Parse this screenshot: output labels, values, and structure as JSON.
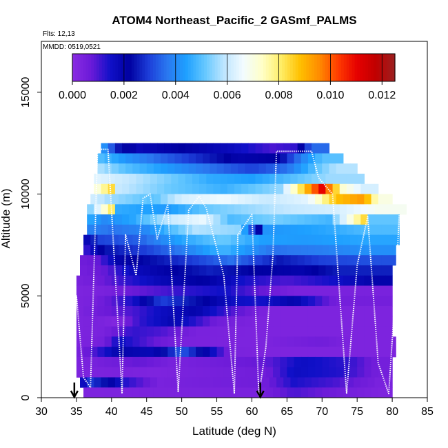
{
  "chart_data": {
    "type": "heatmap",
    "title": "ATOM4 Northeast_Pacific_2 GASmf_PALMS",
    "flights_label": "Flts: 12,13",
    "date_label": "MMDD: 0519,0521",
    "xlabel": "Latitude (deg N)",
    "ylabel": "Altitude (m)",
    "xlim": [
      30,
      85
    ],
    "ylim": [
      0,
      17500
    ],
    "x_ticks": [
      30,
      35,
      40,
      45,
      50,
      55,
      60,
      65,
      70,
      75,
      80,
      85
    ],
    "y_ticks": [
      0,
      5000,
      10000,
      15000
    ],
    "grid": false,
    "colorbar": {
      "placement": "top-inside",
      "min": 0.0,
      "max": 0.0125,
      "tick_values": [
        0.0,
        0.002,
        0.004,
        0.006,
        0.008,
        0.01,
        0.012
      ],
      "tick_labels": [
        "0.000",
        "0.002",
        "0.004",
        "0.006",
        "0.008",
        "0.010",
        "0.012"
      ],
      "colors": [
        "#8a2be2",
        "#6a1ad8",
        "#1010c8",
        "#0000a0",
        "#1c3cd8",
        "#2a78f0",
        "#1ea0ff",
        "#66c8ff",
        "#bfe6ff",
        "#f2fbff",
        "#ffffc8",
        "#ffee66",
        "#ffc000",
        "#ff8c00",
        "#ff3c00",
        "#e60000",
        "#c00000",
        "#9b2020"
      ]
    },
    "heatmap_rows": [
      {
        "alt_bottom": 12000,
        "alt_top": 12500,
        "values": [
          [
            38.5,
            0.0045
          ],
          [
            41,
            0.0025
          ],
          [
            44,
            0.0018
          ],
          [
            50,
            0.0022
          ],
          [
            57,
            0.0017
          ],
          [
            63,
            0.001
          ],
          [
            66,
            0.0012
          ],
          [
            68.5,
            0.0035
          ],
          [
            71,
            null
          ]
        ]
      },
      {
        "alt_bottom": 11500,
        "alt_top": 12000,
        "values": [
          [
            38,
            0.005
          ],
          [
            42,
            0.0042
          ],
          [
            46,
            0.0036
          ],
          [
            52,
            0.0028
          ],
          [
            58,
            0.002
          ],
          [
            64,
            0.0022
          ],
          [
            67,
            0.0038
          ],
          [
            70,
            0.005
          ],
          [
            73,
            null
          ]
        ]
      },
      {
        "alt_bottom": 11000,
        "alt_top": 11500,
        "values": [
          [
            38,
            0.0058
          ],
          [
            42,
            0.005
          ],
          [
            48,
            0.0043
          ],
          [
            54,
            0.0036
          ],
          [
            60,
            0.003
          ],
          [
            65,
            0.0036
          ],
          [
            69,
            0.005
          ],
          [
            72,
            0.0058
          ],
          [
            75,
            null
          ]
        ]
      },
      {
        "alt_bottom": 10500,
        "alt_top": 11000,
        "values": [
          [
            37.5,
            0.0064
          ],
          [
            42,
            0.006
          ],
          [
            48,
            0.0053
          ],
          [
            54,
            0.0046
          ],
          [
            60,
            0.0044
          ],
          [
            66,
            0.005
          ],
          [
            71,
            0.0056
          ],
          [
            76,
            null
          ]
        ]
      },
      {
        "alt_bottom": 10000,
        "alt_top": 10500,
        "values": [
          [
            37.5,
            0.0068
          ],
          [
            40,
            0.0084
          ],
          [
            41,
            0.006
          ],
          [
            48,
            0.0052
          ],
          [
            56,
            0.0047
          ],
          [
            64,
            0.0055
          ],
          [
            70,
            0.011
          ],
          [
            73,
            0.0072
          ],
          [
            76,
            0.0062
          ],
          [
            78,
            null
          ]
        ]
      },
      {
        "alt_bottom": 9500,
        "alt_top": 10000,
        "values": [
          [
            37,
            0.0062
          ],
          [
            40,
            0.0056
          ],
          [
            46,
            0.005
          ],
          [
            50,
            0.0062
          ],
          [
            56,
            0.0066
          ],
          [
            62,
            0.006
          ],
          [
            68,
            0.0064
          ],
          [
            72,
            0.0088
          ],
          [
            76,
            0.0094
          ],
          [
            78,
            0.007
          ],
          [
            80,
            null
          ]
        ]
      },
      {
        "alt_bottom": 9000,
        "alt_top": 9500,
        "values": [
          [
            36.5,
            0.005
          ],
          [
            40,
            0.0081
          ],
          [
            41,
            0.0046
          ],
          [
            48,
            0.0043
          ],
          [
            54,
            0.0052
          ],
          [
            60,
            0.0056
          ],
          [
            66,
            0.006
          ],
          [
            72,
            0.0062
          ],
          [
            78,
            0.0068
          ],
          [
            82,
            null
          ]
        ]
      },
      {
        "alt_bottom": 8500,
        "alt_top": 9000,
        "values": [
          [
            36.5,
            0.0046
          ],
          [
            39,
            0.004
          ],
          [
            43,
            0.0045
          ],
          [
            49,
            0.0061
          ],
          [
            53,
            0.0065
          ],
          [
            57,
            0.0049
          ],
          [
            63,
            0.0053
          ],
          [
            71,
            0.0048
          ],
          [
            76,
            0.0084
          ],
          [
            77,
            0.0051
          ],
          [
            81,
            null
          ]
        ]
      },
      {
        "alt_bottom": 8000,
        "alt_top": 8500,
        "values": [
          [
            36.5,
            0.0039
          ],
          [
            40,
            0.0036
          ],
          [
            45,
            0.004
          ],
          [
            52,
            0.0058
          ],
          [
            58,
            0.0055
          ],
          [
            61,
            0.0021
          ],
          [
            62,
            0.0042
          ],
          [
            70,
            0.0045
          ],
          [
            76,
            0.0049
          ],
          [
            81,
            null
          ]
        ]
      },
      {
        "alt_bottom": 7500,
        "alt_top": 8000,
        "values": [
          [
            36,
            0.0014
          ],
          [
            38,
            0.003
          ],
          [
            44,
            0.0034
          ],
          [
            50,
            0.0045
          ],
          [
            56,
            0.0052
          ],
          [
            61,
            0.0044
          ],
          [
            68,
            0.0043
          ],
          [
            75,
            0.0045
          ],
          [
            81,
            null
          ]
        ]
      },
      {
        "alt_bottom": 7000,
        "alt_top": 7500,
        "values": [
          [
            36,
            0.001
          ],
          [
            39,
            0.0024
          ],
          [
            45,
            0.003
          ],
          [
            51,
            0.0039
          ],
          [
            56,
            0.0048
          ],
          [
            63,
            0.0036
          ],
          [
            70,
            0.0038
          ],
          [
            76,
            0.0041
          ],
          [
            80.5,
            null
          ]
        ]
      },
      {
        "alt_bottom": 6500,
        "alt_top": 7000,
        "values": [
          [
            35.5,
            0.0006
          ],
          [
            38,
            0.0008
          ],
          [
            41,
            0.002
          ],
          [
            46,
            0.0024
          ],
          [
            52,
            0.003
          ],
          [
            57,
            0.0036
          ],
          [
            64,
            0.0025
          ],
          [
            70,
            0.003
          ],
          [
            77,
            0.0032
          ],
          [
            80.5,
            null
          ]
        ]
      },
      {
        "alt_bottom": 6000,
        "alt_top": 6500,
        "values": [
          [
            35.5,
            0.0005
          ],
          [
            39,
            0.0008
          ],
          [
            43,
            0.0017
          ],
          [
            48,
            0.0021
          ],
          [
            54,
            0.0026
          ],
          [
            60,
            0.0022
          ],
          [
            67,
            0.002
          ],
          [
            73,
            0.0026
          ],
          [
            80,
            null
          ]
        ]
      },
      {
        "alt_bottom": 5500,
        "alt_top": 6000,
        "values": [
          [
            35,
            0.0004
          ],
          [
            38,
            0.0006
          ],
          [
            42,
            0.0012
          ],
          [
            47,
            0.0018
          ],
          [
            53,
            0.0022
          ],
          [
            59,
            0.0014
          ],
          [
            65,
            0.001
          ],
          [
            72,
            0.0015
          ],
          [
            77,
            0.002
          ],
          [
            80,
            null
          ]
        ]
      },
      {
        "alt_bottom": 5000,
        "alt_top": 5500,
        "values": [
          [
            35,
            0.0003
          ],
          [
            39,
            0.0004
          ],
          [
            44,
            0.0008
          ],
          [
            50,
            0.0012
          ],
          [
            56,
            0.0015
          ],
          [
            61,
            0.0008
          ],
          [
            66,
            0.0004
          ],
          [
            80,
            null
          ]
        ]
      },
      {
        "alt_bottom": 4500,
        "alt_top": 5000,
        "values": [
          [
            35,
            0.0003
          ],
          [
            38,
            0.0005
          ],
          [
            43,
            0.0014
          ],
          [
            47,
            0.003
          ],
          [
            52,
            0.0024
          ],
          [
            57,
            0.0016
          ],
          [
            61,
            0.0014
          ],
          [
            66,
            0.002
          ],
          [
            72,
            0.0005
          ],
          [
            80,
            null
          ]
        ]
      },
      {
        "alt_bottom": 4000,
        "alt_top": 4500,
        "values": [
          [
            35,
            0.0003
          ],
          [
            38,
            0.0006
          ],
          [
            43,
            0.001
          ],
          [
            47,
            0.0016
          ],
          [
            52,
            0.002
          ],
          [
            57,
            0.001
          ],
          [
            62,
            0.0003
          ],
          [
            80,
            null
          ]
        ]
      },
      {
        "alt_bottom": 3500,
        "alt_top": 4000,
        "values": [
          [
            35,
            0.0003
          ],
          [
            38,
            0.0004
          ],
          [
            41,
            0.0002
          ],
          [
            44,
            0.0012
          ],
          [
            49,
            0.0019
          ],
          [
            55,
            0.0006
          ],
          [
            61,
            0.0003
          ],
          [
            80,
            null
          ]
        ]
      },
      {
        "alt_bottom": 3000,
        "alt_top": 3500,
        "values": [
          [
            35,
            0.0003
          ],
          [
            39,
            0.0004
          ],
          [
            43,
            0.0012
          ],
          [
            47,
            0.001
          ],
          [
            52,
            0.0004
          ],
          [
            61,
            0.0003
          ],
          [
            80,
            null
          ]
        ]
      },
      {
        "alt_bottom": 2500,
        "alt_top": 3000,
        "values": [
          [
            35,
            0.0003
          ],
          [
            39,
            0.0005
          ],
          [
            41,
            0.0016
          ],
          [
            46,
            0.0008
          ],
          [
            50,
            0.0004
          ],
          [
            61,
            0.0003
          ],
          [
            70,
            0.0006
          ],
          [
            74,
            0.0003
          ],
          [
            80.5,
            null
          ]
        ]
      },
      {
        "alt_bottom": 2000,
        "alt_top": 2500,
        "values": [
          [
            35,
            0.0003
          ],
          [
            41,
            0.002
          ],
          [
            46,
            0.0018
          ],
          [
            50,
            0.0033
          ],
          [
            54,
            0.0018
          ],
          [
            57,
            0.0004
          ],
          [
            61,
            0.0003
          ],
          [
            80.5,
            null
          ]
        ]
      },
      {
        "alt_bottom": 1500,
        "alt_top": 2000,
        "values": [
          [
            35,
            0.0003
          ],
          [
            40,
            0.0006
          ],
          [
            44,
            0.0008
          ],
          [
            49,
            0.0004
          ],
          [
            62,
            0.0008
          ],
          [
            67,
            0.0016
          ],
          [
            74,
            0.0012
          ],
          [
            78,
            0.0005
          ],
          [
            80,
            null
          ]
        ]
      },
      {
        "alt_bottom": 1000,
        "alt_top": 1500,
        "values": [
          [
            35,
            0.0003
          ],
          [
            41,
            0.0004
          ],
          [
            46,
            0.0003
          ],
          [
            62,
            0.0006
          ],
          [
            66,
            0.0016
          ],
          [
            73,
            0.0013
          ],
          [
            78,
            0.0005
          ],
          [
            80,
            null
          ]
        ]
      },
      {
        "alt_bottom": 500,
        "alt_top": 1000,
        "values": [
          [
            35.5,
            0.0003
          ],
          [
            36.5,
            0.003
          ],
          [
            39,
            0.0024
          ],
          [
            42,
            0.0013
          ],
          [
            47,
            0.0004
          ],
          [
            62,
            0.0006
          ],
          [
            66,
            0.0014
          ],
          [
            72,
            0.001
          ],
          [
            78,
            0.0004
          ],
          [
            80,
            null
          ]
        ]
      },
      {
        "alt_bottom": 0,
        "alt_top": 500,
        "values": [
          [
            36,
            0.0003
          ],
          [
            61,
            0.0004
          ],
          [
            66,
            0.001
          ],
          [
            72,
            0.0006
          ],
          [
            78,
            0.0003
          ],
          [
            80,
            null
          ]
        ]
      }
    ],
    "flight_track": [
      [
        34.6,
        1300
      ],
      [
        35,
        5000
      ],
      [
        36,
        1000
      ],
      [
        37,
        500
      ],
      [
        38,
        12200
      ],
      [
        39.5,
        12200
      ],
      [
        41.5,
        200
      ],
      [
        42,
        8000
      ],
      [
        43.5,
        6000
      ],
      [
        44.5,
        9800
      ],
      [
        45.5,
        10000
      ],
      [
        46.5,
        7800
      ],
      [
        48,
        9500
      ],
      [
        49.5,
        300
      ],
      [
        51,
        9200
      ],
      [
        52.5,
        9900
      ],
      [
        53.5,
        9300
      ],
      [
        56,
        6000
      ],
      [
        57.5,
        200
      ],
      [
        58,
        8000
      ],
      [
        59,
        8500
      ],
      [
        60,
        9000
      ],
      [
        61,
        100
      ],
      [
        62,
        2500
      ],
      [
        63,
        7000
      ],
      [
        63.5,
        12100
      ],
      [
        68.5,
        12100
      ],
      [
        69.5,
        10800
      ],
      [
        71.5,
        10000
      ],
      [
        73.5,
        200
      ],
      [
        75,
        6500
      ],
      [
        76.5,
        8900
      ],
      [
        78,
        1700
      ],
      [
        79.5,
        200
      ],
      [
        80.5,
        5500
      ],
      [
        81,
        9000
      ]
    ],
    "markers": [
      {
        "x": 34.7,
        "label": "↓"
      },
      {
        "x": 61.2,
        "label": "↓"
      }
    ]
  }
}
